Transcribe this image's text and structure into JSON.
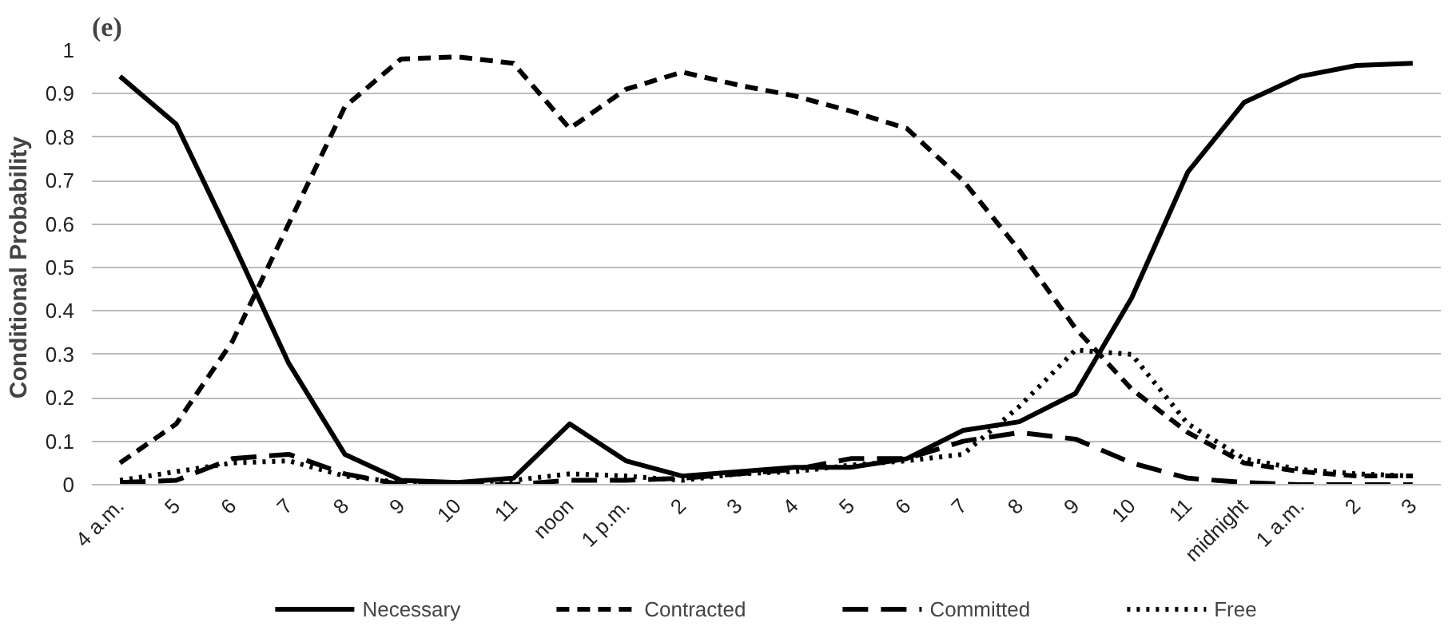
{
  "chart_data": {
    "type": "line",
    "title": "(e)",
    "ylabel": "Conditional Probability",
    "categories": [
      "4 a.m.",
      "5",
      "6",
      "7",
      "8",
      "9",
      "10",
      "11",
      "noon",
      "1 p.m.",
      "2",
      "3",
      "4",
      "5",
      "6",
      "7",
      "8",
      "9",
      "10",
      "11",
      "midnight",
      "1 a.m.",
      "2",
      "3"
    ],
    "ylim": [
      0,
      1
    ],
    "yticks": [
      0,
      0.1,
      0.2,
      0.3,
      0.4,
      0.5,
      0.6,
      0.7,
      0.8,
      0.9,
      1
    ],
    "grid": "y",
    "legend": "bottom",
    "marker": "none",
    "series": [
      {
        "name": "Necessary",
        "color": "#000000",
        "line_style": "solid",
        "values": [
          0.94,
          0.83,
          0.56,
          0.28,
          0.07,
          0.01,
          0.005,
          0.015,
          0.14,
          0.055,
          0.02,
          0.03,
          0.04,
          0.04,
          0.06,
          0.125,
          0.145,
          0.21,
          0.43,
          0.72,
          0.88,
          0.94,
          0.965,
          0.97
        ]
      },
      {
        "name": "Contracted",
        "color": "#000000",
        "line_style": "dashed",
        "values": [
          0.05,
          0.14,
          0.33,
          0.6,
          0.87,
          0.98,
          0.985,
          0.97,
          0.82,
          0.91,
          0.95,
          0.92,
          0.895,
          0.86,
          0.82,
          0.7,
          0.54,
          0.36,
          0.22,
          0.12,
          0.05,
          0.03,
          0.02,
          0.02
        ]
      },
      {
        "name": "Committed",
        "color": "#000000",
        "line_style": "dashdot",
        "values": [
          0.005,
          0.01,
          0.06,
          0.07,
          0.025,
          0.0,
          0.0,
          0.0,
          0.01,
          0.01,
          0.015,
          0.025,
          0.035,
          0.06,
          0.06,
          0.1,
          0.12,
          0.105,
          0.05,
          0.015,
          0.005,
          0.0,
          0.0,
          0.0
        ]
      },
      {
        "name": "Free",
        "color": "#000000",
        "line_style": "dotted",
        "values": [
          0.01,
          0.03,
          0.05,
          0.055,
          0.02,
          0.005,
          0.005,
          0.01,
          0.025,
          0.02,
          0.01,
          0.025,
          0.03,
          0.045,
          0.055,
          0.07,
          0.18,
          0.31,
          0.3,
          0.14,
          0.06,
          0.035,
          0.025,
          0.02
        ]
      }
    ]
  }
}
